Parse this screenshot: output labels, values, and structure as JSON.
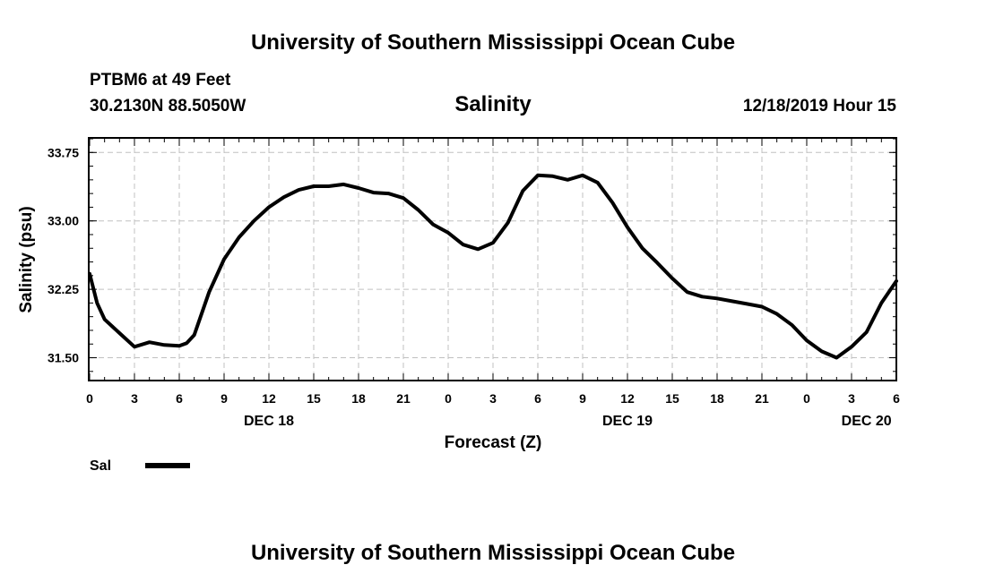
{
  "header": {
    "org_title": "University of Southern Mississippi Ocean Cube",
    "station": "PTBM6 at 49 Feet",
    "location": "30.2130N 88.5050W",
    "plot_title": "Salinity",
    "run_time": "12/18/2019 Hour 15"
  },
  "footer": {
    "org_title": "University of Southern Mississippi Ocean Cube"
  },
  "legend": {
    "label": "Sal"
  },
  "colors": {
    "line": "#000000",
    "grid": "#c0c0c0",
    "axis": "#000000"
  },
  "chart_data": {
    "type": "line",
    "title": "Salinity",
    "xlabel": "Forecast (Z)",
    "ylabel": "Salinity (psu)",
    "xlim": [
      0,
      54
    ],
    "ylim": [
      31.25,
      33.9
    ],
    "yticks": [
      31.5,
      32.25,
      33.0,
      33.75
    ],
    "ytick_labels": [
      "31.50",
      "32.25",
      "33.00",
      "33.75"
    ],
    "xticks": [
      0,
      3,
      6,
      9,
      12,
      15,
      18,
      21,
      24,
      27,
      30,
      33,
      36,
      39,
      42,
      45,
      48,
      51,
      54
    ],
    "xtick_labels": [
      "0",
      "3",
      "6",
      "9",
      "12",
      "15",
      "18",
      "21",
      "0",
      "3",
      "6",
      "9",
      "12",
      "15",
      "18",
      "21",
      "0",
      "3",
      "6"
    ],
    "date_labels": [
      {
        "x": 12,
        "label": "DEC 18"
      },
      {
        "x": 36,
        "label": "DEC 19"
      },
      {
        "x": 52,
        "label": "DEC 20"
      }
    ],
    "series": [
      {
        "name": "Sal",
        "x": [
          0,
          0.5,
          1,
          2,
          3,
          4,
          5,
          6,
          6.5,
          7,
          8,
          9,
          10,
          11,
          12,
          13,
          14,
          15,
          16,
          17,
          18,
          19,
          20,
          21,
          22,
          23,
          24,
          25,
          26,
          27,
          28,
          29,
          30,
          31,
          32,
          33,
          34,
          35,
          36,
          37,
          38,
          39,
          40,
          41,
          42,
          43,
          44,
          45,
          46,
          47,
          48,
          49,
          50,
          51,
          52,
          53,
          54
        ],
        "values": [
          32.42,
          32.1,
          31.92,
          31.77,
          31.62,
          31.67,
          31.64,
          31.63,
          31.66,
          31.75,
          32.22,
          32.58,
          32.82,
          33.0,
          33.15,
          33.26,
          33.34,
          33.38,
          33.38,
          33.4,
          33.36,
          33.31,
          33.3,
          33.25,
          33.12,
          32.96,
          32.87,
          32.74,
          32.69,
          32.76,
          32.98,
          33.33,
          33.5,
          33.49,
          33.45,
          33.5,
          33.42,
          33.2,
          32.93,
          32.7,
          32.54,
          32.37,
          32.22,
          32.17,
          32.15,
          32.12,
          32.09,
          32.06,
          31.98,
          31.86,
          31.69,
          31.57,
          31.5,
          31.62,
          31.78,
          32.1,
          32.34
        ]
      }
    ]
  }
}
